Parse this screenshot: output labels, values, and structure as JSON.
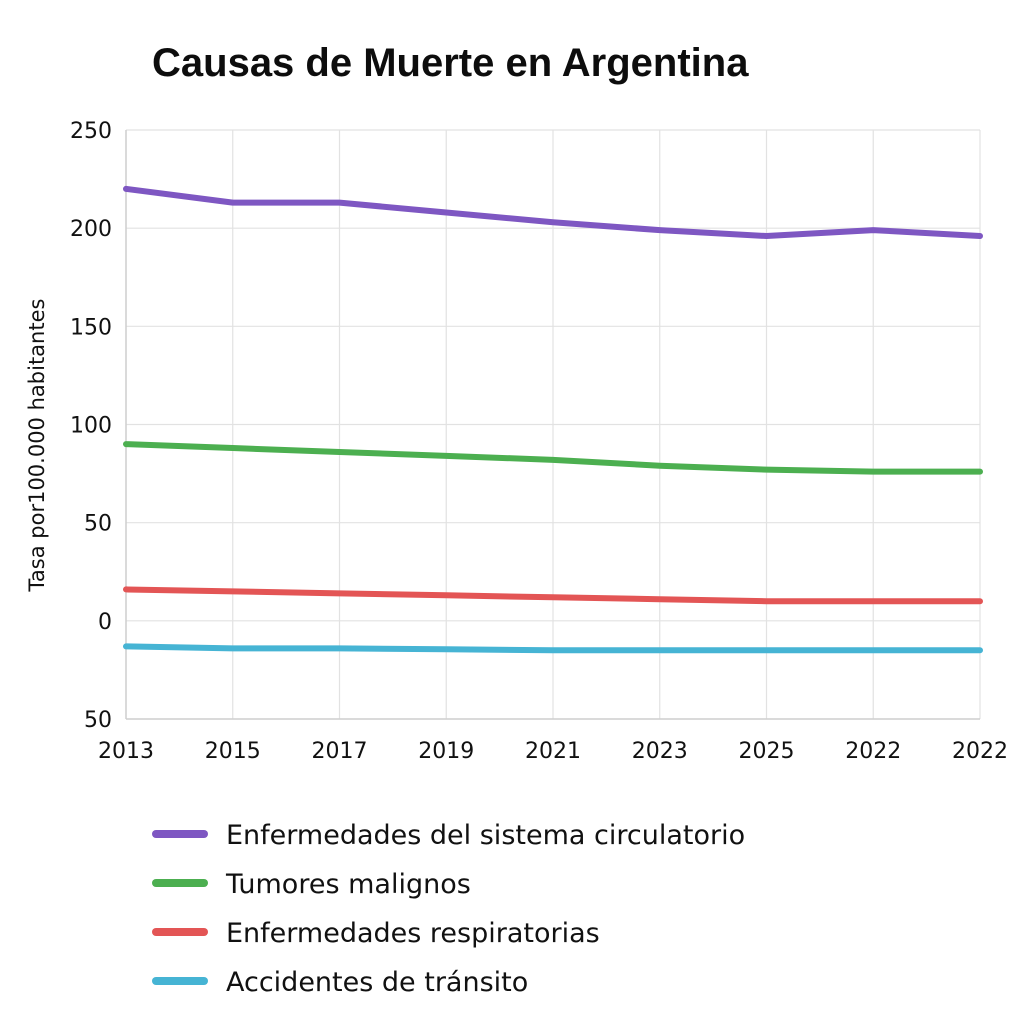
{
  "chart_data": {
    "type": "line",
    "title": "Causas de Muerte en Argentina",
    "xlabel": "",
    "ylabel": "Tasa por100.000 habitantes",
    "categories": [
      "2013",
      "2015",
      "2017",
      "2019",
      "2021",
      "2023",
      "2025",
      "2022",
      "2022"
    ],
    "y_tick_labels": [
      "250",
      "200",
      "150",
      "100",
      "50",
      "0",
      "50"
    ],
    "y_tick_values": [
      250,
      200,
      150,
      100,
      50,
      0,
      -50
    ],
    "ylim": [
      -50,
      250
    ],
    "grid": true,
    "legend_position": "bottom",
    "series": [
      {
        "name": "Enfermedades del sistema circulatorio",
        "color": "#7e57c2",
        "values": [
          220,
          213,
          213,
          208,
          203,
          199,
          196,
          199,
          196
        ]
      },
      {
        "name": "Tumores malignos",
        "color": "#4caf50",
        "values": [
          90,
          88,
          86,
          84,
          82,
          79,
          77,
          76,
          76
        ]
      },
      {
        "name": "Enfermedades respiratorias",
        "color": "#e35555",
        "values": [
          16,
          15,
          14,
          13,
          12,
          11,
          10,
          10,
          10
        ]
      },
      {
        "name": "Accidentes de tránsito",
        "color": "#46b4d4",
        "values": [
          -13,
          -14,
          -14,
          -14.5,
          -15,
          -15,
          -15,
          -15,
          -15
        ]
      }
    ]
  }
}
